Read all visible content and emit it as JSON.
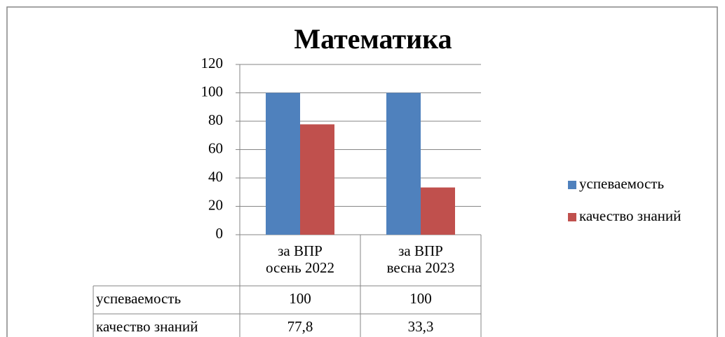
{
  "chart_data": {
    "type": "bar",
    "title": "Математика",
    "categories": [
      "за ВПР\nосень 2022",
      "за ВПР\nвесна 2023"
    ],
    "series": [
      {
        "name": "успеваемость",
        "color": "#4f81bd",
        "values": [
          100,
          100
        ],
        "value_labels": [
          "100",
          "100"
        ]
      },
      {
        "name": "качество знаний",
        "color": "#c0504d",
        "values": [
          77.8,
          33.3
        ],
        "value_labels": [
          "77,8",
          "33,3"
        ]
      }
    ],
    "ylim": [
      0,
      120
    ],
    "yticks": [
      0,
      20,
      40,
      60,
      80,
      100,
      120
    ],
    "grid": true,
    "legend": "right"
  }
}
